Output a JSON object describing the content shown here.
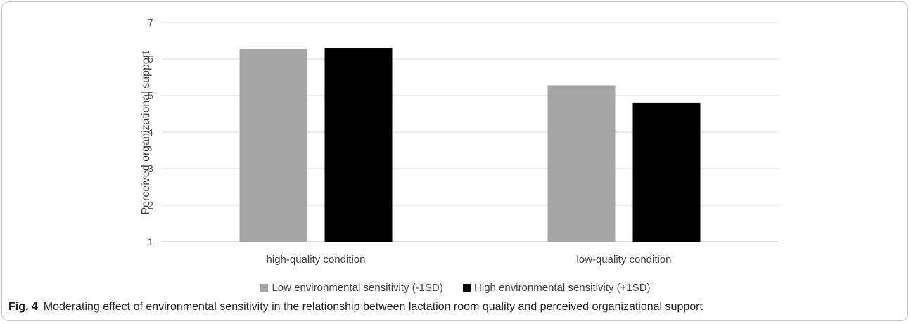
{
  "chart_data": {
    "type": "bar",
    "categories": [
      "high-quality condition",
      "low-quality condition"
    ],
    "series": [
      {
        "name": "Low environmental sensitivity (-1SD)",
        "color": "#a5a5a5",
        "values": [
          6.27,
          5.28
        ]
      },
      {
        "name": "High environmental sensitivity (+1SD)",
        "color": "#000000",
        "values": [
          6.3,
          4.81
        ]
      }
    ],
    "ylabel": "Perceived organizational support",
    "xlabel": "",
    "ylim": [
      1,
      7
    ],
    "yticks": [
      1,
      2,
      3,
      4,
      5,
      6,
      7
    ],
    "grid": true,
    "legend_position": "bottom"
  },
  "caption": {
    "label": "Fig. 4",
    "text": "Moderating effect of environmental sensitivity in the relationship between lactation room quality and perceived organizational support"
  }
}
